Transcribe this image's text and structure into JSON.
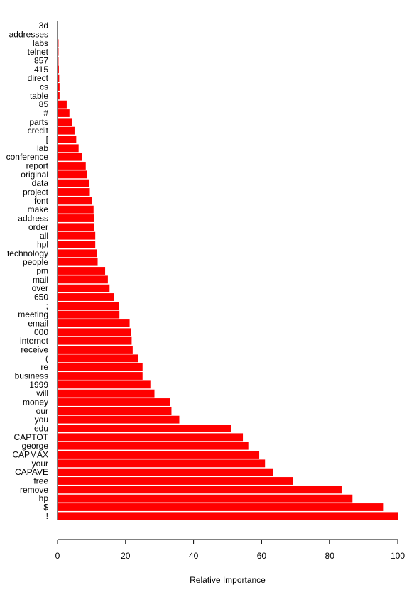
{
  "chart_data": {
    "type": "bar",
    "orientation": "horizontal",
    "title": "",
    "xlabel": "Relative Importance",
    "ylabel": "",
    "xlim": [
      0,
      100
    ],
    "xticks": [
      0,
      20,
      40,
      60,
      80,
      100
    ],
    "grid": false,
    "legend": "none",
    "bar_color": "#ff0000",
    "categories": [
      "3d",
      "addresses",
      "labs",
      "telnet",
      "857",
      "415",
      "direct",
      "cs",
      "table",
      "85",
      "#",
      "parts",
      "credit",
      "[",
      "lab",
      "conference",
      "report",
      "original",
      "data",
      "project",
      "font",
      "make",
      "address",
      "order",
      "all",
      "hpl",
      "technology",
      "people",
      "pm",
      "mail",
      "over",
      "650",
      ";",
      "meeting",
      "email",
      "000",
      "internet",
      "receive",
      "(",
      "re",
      "business",
      "1999",
      "will",
      "money",
      "our",
      "you",
      "edu",
      "CAPTOT",
      "george",
      "CAPMAX",
      "your",
      "CAPAVE",
      "free",
      "remove",
      "hp",
      "$",
      "!"
    ],
    "values": [
      0.1,
      0.2,
      0.3,
      0.3,
      0.3,
      0.4,
      0.5,
      0.6,
      0.6,
      2.7,
      3.5,
      4.3,
      5.0,
      5.5,
      6.2,
      7.1,
      8.3,
      8.7,
      9.4,
      9.5,
      10.2,
      10.6,
      10.8,
      10.8,
      11.1,
      11.1,
      11.6,
      11.8,
      14.0,
      14.8,
      15.3,
      16.7,
      18.1,
      18.2,
      21.2,
      21.7,
      21.8,
      22.1,
      23.7,
      25.0,
      25.0,
      27.3,
      28.5,
      33.0,
      33.5,
      35.8,
      51.0,
      54.5,
      56.1,
      59.3,
      61.0,
      63.4,
      69.2,
      83.5,
      86.7,
      95.9,
      100.0
    ]
  }
}
